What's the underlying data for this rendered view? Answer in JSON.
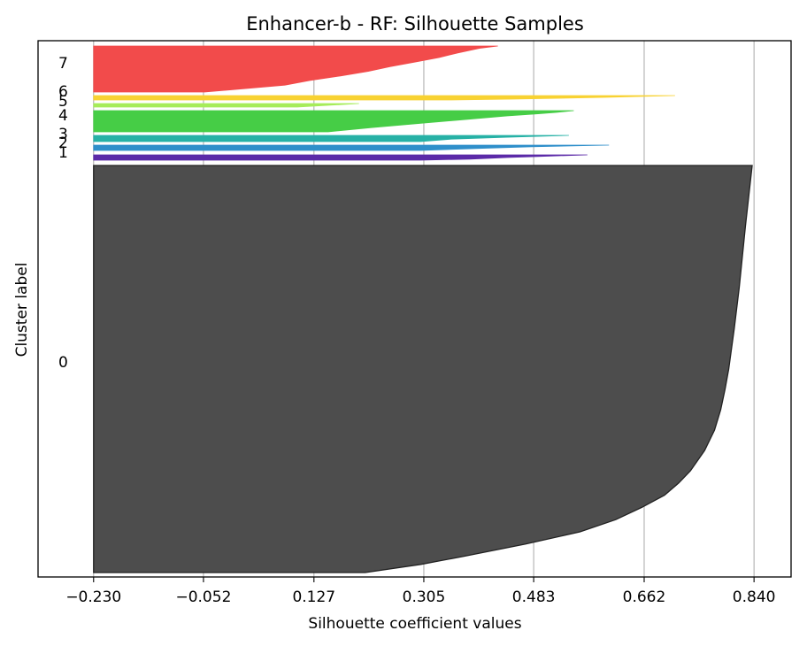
{
  "chart_data": {
    "type": "silhouette",
    "title": "Enhancer-b - RF: Silhouette Samples",
    "xlabel": "Silhouette coefficient values",
    "ylabel": "Cluster label",
    "xlim": [
      -0.32,
      0.9
    ],
    "x_ticks": [
      -0.23,
      -0.052,
      0.127,
      0.305,
      0.483,
      0.662,
      0.84
    ],
    "x_tick_labels": [
      "−0.230",
      "−0.052",
      "0.127",
      "0.305",
      "0.483",
      "0.662",
      "0.840"
    ],
    "grid": "x",
    "colors": {
      "0": "#4d4d4d",
      "1": "#5b2aa8",
      "2": "#2f8fca",
      "3": "#27b1a6",
      "4": "#46cd46",
      "5": "#a6ec5a",
      "6": "#f8d232",
      "7": "#f24b4b"
    },
    "clusters": [
      {
        "label": "0",
        "profile": [
          [
            0,
            0.837
          ],
          [
            0.15,
            0.826
          ],
          [
            0.3,
            0.816
          ],
          [
            0.4,
            0.808
          ],
          [
            0.5,
            0.799
          ],
          [
            0.55,
            0.793
          ],
          [
            0.6,
            0.786
          ],
          [
            0.65,
            0.776
          ],
          [
            0.7,
            0.76
          ],
          [
            0.75,
            0.737
          ],
          [
            0.78,
            0.718
          ],
          [
            0.81,
            0.695
          ],
          [
            0.84,
            0.658
          ],
          [
            0.87,
            0.616
          ],
          [
            0.9,
            0.558
          ],
          [
            0.93,
            0.47
          ],
          [
            0.96,
            0.37
          ],
          [
            0.98,
            0.3
          ],
          [
            1.0,
            0.21
          ]
        ]
      },
      {
        "label": "1",
        "profile": [
          [
            0,
            0.57
          ],
          [
            0.3,
            0.49
          ],
          [
            0.5,
            0.44
          ],
          [
            0.8,
            0.38
          ],
          [
            1.0,
            0.3
          ]
        ]
      },
      {
        "label": "2",
        "profile": [
          [
            0,
            0.605
          ],
          [
            0.3,
            0.48
          ],
          [
            0.6,
            0.4
          ],
          [
            1.0,
            0.3
          ]
        ]
      },
      {
        "label": "3",
        "profile": [
          [
            0,
            0.54
          ],
          [
            0.3,
            0.44
          ],
          [
            0.6,
            0.35
          ],
          [
            1.0,
            0.3
          ]
        ]
      },
      {
        "label": "4",
        "profile": [
          [
            0,
            0.548
          ],
          [
            0.08,
            0.52
          ],
          [
            0.15,
            0.49
          ],
          [
            0.25,
            0.44
          ],
          [
            0.4,
            0.38
          ],
          [
            0.6,
            0.3
          ],
          [
            0.8,
            0.22
          ],
          [
            1.0,
            0.15
          ]
        ]
      },
      {
        "label": "5",
        "profile": [
          [
            0,
            0.2
          ],
          [
            0.5,
            0.15
          ],
          [
            1.0,
            0.1
          ]
        ]
      },
      {
        "label": "6",
        "profile": [
          [
            0,
            0.712
          ],
          [
            0.4,
            0.6
          ],
          [
            0.8,
            0.45
          ],
          [
            1.0,
            0.35
          ]
        ]
      },
      {
        "label": "7",
        "profile": [
          [
            0,
            0.425
          ],
          [
            0.05,
            0.395
          ],
          [
            0.15,
            0.36
          ],
          [
            0.25,
            0.33
          ],
          [
            0.35,
            0.29
          ],
          [
            0.45,
            0.25
          ],
          [
            0.55,
            0.215
          ],
          [
            0.65,
            0.17
          ],
          [
            0.75,
            0.12
          ],
          [
            0.85,
            0.08
          ],
          [
            0.92,
            0.02
          ],
          [
            1.0,
            -0.05
          ]
        ]
      }
    ]
  }
}
